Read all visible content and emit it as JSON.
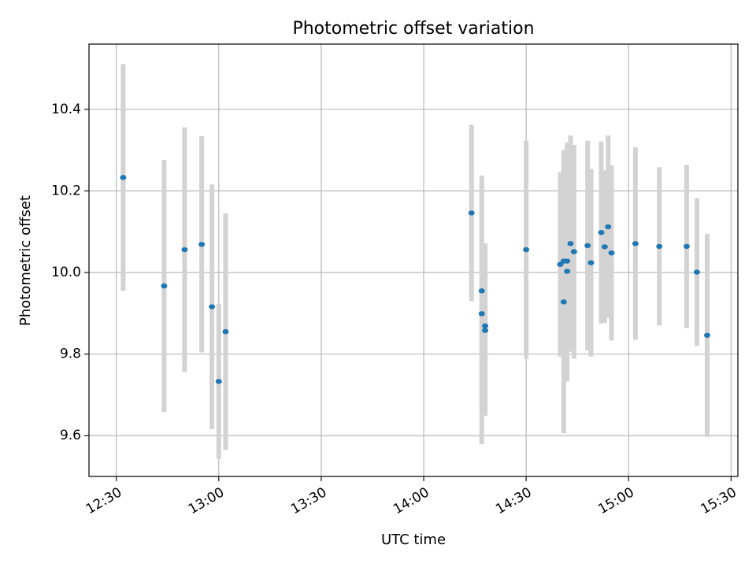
{
  "chart_data": {
    "type": "scatter",
    "title": "Photometric offset variation",
    "xlabel": "UTC time",
    "ylabel": "Photometric offset",
    "xlim": [
      "12:22",
      "15:32"
    ],
    "ylim": [
      9.5,
      10.56
    ],
    "grid": true,
    "xticks": [
      "12:30",
      "13:00",
      "13:30",
      "14:00",
      "14:30",
      "15:00",
      "15:30"
    ],
    "yticks": [
      9.6,
      9.8,
      10.0,
      10.2,
      10.4
    ],
    "marker_color": "#1f77b4",
    "errorbar_color": "#d3d3d3",
    "points": [
      {
        "t": "12:32",
        "y": 10.233,
        "err": 0.278
      },
      {
        "t": "12:44",
        "y": 9.967,
        "err": 0.309
      },
      {
        "t": "12:50",
        "y": 10.056,
        "err": 0.3
      },
      {
        "t": "12:55",
        "y": 10.069,
        "err": 0.265
      },
      {
        "t": "12:58",
        "y": 9.916,
        "err": 0.3
      },
      {
        "t": "13:00",
        "y": 9.733,
        "err": 0.19
      },
      {
        "t": "13:02",
        "y": 9.855,
        "err": 0.29
      },
      {
        "t": "14:14",
        "y": 10.146,
        "err": 0.216
      },
      {
        "t": "14:17",
        "y": 9.899,
        "err": 0.32
      },
      {
        "t": "14:17",
        "y": 9.955,
        "err": 0.283
      },
      {
        "t": "14:18",
        "y": 9.869,
        "err": 0.203
      },
      {
        "t": "14:18",
        "y": 9.858,
        "err": 0.209
      },
      {
        "t": "14:30",
        "y": 10.056,
        "err": 0.267
      },
      {
        "t": "14:40",
        "y": 10.02,
        "err": 0.226
      },
      {
        "t": "14:41",
        "y": 9.928,
        "err": 0.322
      },
      {
        "t": "14:41",
        "y": 10.028,
        "err": 0.272
      },
      {
        "t": "14:42",
        "y": 10.028,
        "err": 0.291
      },
      {
        "t": "14:42",
        "y": 10.003,
        "err": 0.27
      },
      {
        "t": "14:43",
        "y": 10.071,
        "err": 0.265
      },
      {
        "t": "14:44",
        "y": 10.051,
        "err": 0.262
      },
      {
        "t": "14:48",
        "y": 10.066,
        "err": 0.257
      },
      {
        "t": "14:49",
        "y": 10.024,
        "err": 0.23
      },
      {
        "t": "14:52",
        "y": 10.098,
        "err": 0.223
      },
      {
        "t": "14:53",
        "y": 10.063,
        "err": 0.187
      },
      {
        "t": "14:54",
        "y": 10.112,
        "err": 0.224
      },
      {
        "t": "14:55",
        "y": 10.048,
        "err": 0.215
      },
      {
        "t": "15:02",
        "y": 10.071,
        "err": 0.236
      },
      {
        "t": "15:09",
        "y": 10.064,
        "err": 0.194
      },
      {
        "t": "15:17",
        "y": 10.064,
        "err": 0.2
      },
      {
        "t": "15:20",
        "y": 10.001,
        "err": 0.181
      },
      {
        "t": "15:23",
        "y": 9.846,
        "err": 0.249
      }
    ]
  }
}
